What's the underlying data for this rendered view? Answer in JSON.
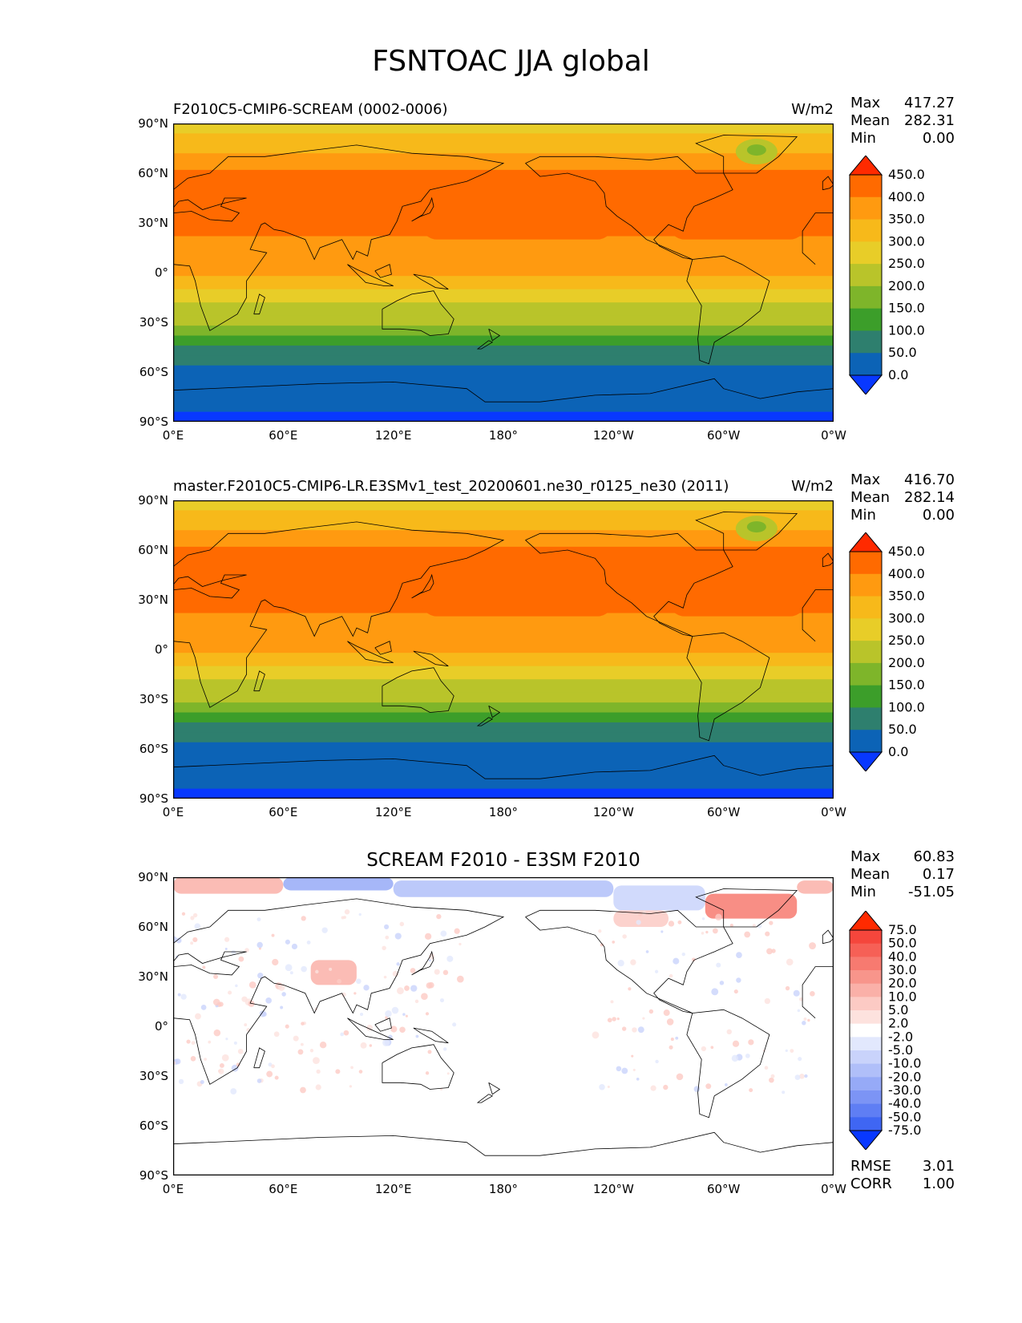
{
  "title": "FSNTOAC JJA global",
  "lon_ticks": [
    "0°E",
    "60°E",
    "120°E",
    "180°",
    "120°W",
    "60°W",
    "0°W"
  ],
  "lat_ticks": [
    "90°N",
    "60°N",
    "30°N",
    "0°",
    "30°S",
    "60°S",
    "90°S"
  ],
  "panels": [
    {
      "title_left": "F2010C5-CMIP6-SCREAM (0002-0006)",
      "title_center": "",
      "units": "W/m2",
      "stats": [
        {
          "label": "Max",
          "value": "417.27"
        },
        {
          "label": "Mean",
          "value": "282.31"
        },
        {
          "label": "Min",
          "value": "0.00"
        }
      ],
      "colorbar": {
        "labels": [
          "450.0",
          "400.0",
          "350.0",
          "300.0",
          "250.0",
          "200.0",
          "150.0",
          "100.0",
          "50.0",
          "0.0"
        ],
        "colors": [
          "#ff2a00",
          "#ff6a00",
          "#ff9a10",
          "#f7b91a",
          "#e8cd28",
          "#b9c42a",
          "#7eb52a",
          "#3c9e2a",
          "#2e7f6e",
          "#0c63b6",
          "#0838ff"
        ]
      },
      "footer": []
    },
    {
      "title_left": "master.F2010C5-CMIP6-LR.E3SMv1_test_20200601.ne30_r0125_ne30 (2011)",
      "title_center": "",
      "units": "W/m2",
      "stats": [
        {
          "label": "Max",
          "value": "416.70"
        },
        {
          "label": "Mean",
          "value": "282.14"
        },
        {
          "label": "Min",
          "value": "0.00"
        }
      ],
      "colorbar": {
        "labels": [
          "450.0",
          "400.0",
          "350.0",
          "300.0",
          "250.0",
          "200.0",
          "150.0",
          "100.0",
          "50.0",
          "0.0"
        ],
        "colors": [
          "#ff2a00",
          "#ff6a00",
          "#ff9a10",
          "#f7b91a",
          "#e8cd28",
          "#b9c42a",
          "#7eb52a",
          "#3c9e2a",
          "#2e7f6e",
          "#0c63b6",
          "#0838ff"
        ]
      },
      "footer": []
    },
    {
      "title_left": "",
      "title_center": "SCREAM F2010 - E3SM F2010",
      "units": "",
      "stats": [
        {
          "label": "Max",
          "value": "60.83"
        },
        {
          "label": "Mean",
          "value": "0.17"
        },
        {
          "label": "Min",
          "value": "-51.05"
        }
      ],
      "colorbar": {
        "labels": [
          "75.0",
          "50.0",
          "40.0",
          "30.0",
          "20.0",
          "10.0",
          "5.0",
          "2.0",
          "-2.0",
          "-5.0",
          "-10.0",
          "-20.0",
          "-30.0",
          "-40.0",
          "-50.0",
          "-75.0"
        ],
        "colors": [
          "#ff2a00",
          "#f5463c",
          "#f66056",
          "#f77a70",
          "#f8958b",
          "#fab0a8",
          "#fccac4",
          "#fde2de",
          "#ffffff",
          "#e2e8fd",
          "#c9d3fb",
          "#b0bff9",
          "#96aaf7",
          "#7c94f5",
          "#5f7ef4",
          "#3f66f3",
          "#0838ff"
        ]
      },
      "footer": [
        {
          "label": "RMSE",
          "value": "3.01"
        },
        {
          "label": "CORR",
          "value": "1.00"
        }
      ]
    }
  ]
}
